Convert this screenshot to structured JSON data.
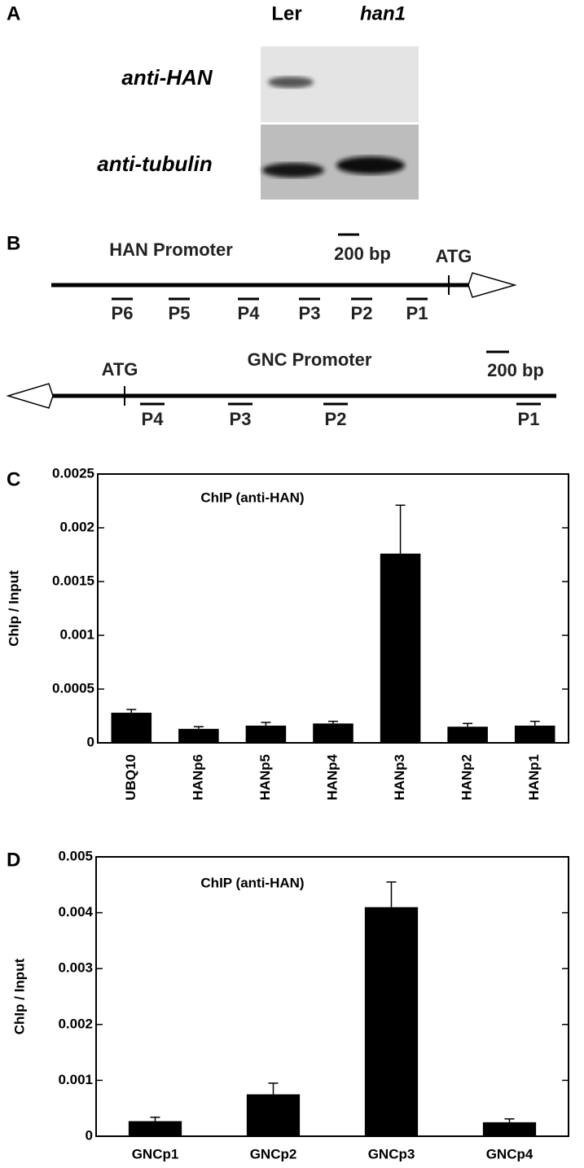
{
  "panel_a": {
    "label": "A",
    "columns": [
      "Ler",
      "han1"
    ],
    "rows": [
      "anti-HAN",
      "anti-tubulin"
    ]
  },
  "panel_b": {
    "label": "B",
    "han": {
      "title": "HAN Promoter",
      "scale": "200 bp",
      "start": "ATG",
      "primers": [
        "P6",
        "P5",
        "P4",
        "P3",
        "P2",
        "P1"
      ]
    },
    "gnc": {
      "title": "GNC Promoter",
      "scale": "200 bp",
      "start": "ATG",
      "primers": [
        "P4",
        "P3",
        "P2",
        "P1"
      ]
    }
  },
  "chart_data": [
    {
      "type": "bar",
      "panel_label": "C",
      "annotation": "ChIP (anti-HAN)",
      "y_label": "ChIp / Input",
      "categories": [
        "UBQ10",
        "HANp6",
        "HANp5",
        "HANp4",
        "HANp3",
        "HANp2",
        "HANp1"
      ],
      "values": [
        0.00028,
        0.00013,
        0.00016,
        0.00018,
        0.00176,
        0.00015,
        0.00016
      ],
      "errors": [
        3e-05,
        2e-05,
        3e-05,
        2e-05,
        0.00045,
        3e-05,
        4e-05
      ],
      "color": "#000000",
      "ylim": [
        0,
        0.0025
      ],
      "yticks": [
        0,
        0.0005,
        0.001,
        0.0015,
        0.002,
        0.0025
      ],
      "rotated_x_labels": true
    },
    {
      "type": "bar",
      "panel_label": "D",
      "annotation": "ChIP (anti-HAN)",
      "y_label": "ChIp / Input",
      "categories": [
        "GNCp1",
        "GNCp2",
        "GNCp3",
        "GNCp4"
      ],
      "values": [
        0.00027,
        0.00075,
        0.0041,
        0.00025
      ],
      "errors": [
        7e-05,
        0.0002,
        0.00045,
        6e-05
      ],
      "color": "#000000",
      "ylim": [
        0,
        0.005
      ],
      "yticks": [
        0,
        0.001,
        0.002,
        0.003,
        0.004,
        0.005
      ],
      "rotated_x_labels": false
    }
  ]
}
